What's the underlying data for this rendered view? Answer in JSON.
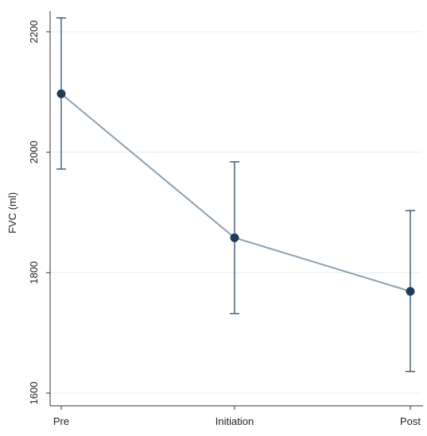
{
  "chart_data": {
    "type": "line",
    "categories": [
      "Pre",
      "Initiation",
      "Post"
    ],
    "series": [
      {
        "values": [
          2097,
          1858,
          1769
        ],
        "ci_lower": [
          1972,
          1732,
          1636
        ],
        "ci_upper": [
          2223,
          1984,
          1903
        ]
      }
    ],
    "xlabel": "",
    "ylabel": "FVC (ml)",
    "yticks": [
      1600,
      1800,
      2000,
      2200
    ],
    "ylim": [
      1600,
      2230
    ],
    "grid": true,
    "colors": {
      "line": "#8aa0b2",
      "marker": "#1f3b5a",
      "error_bar": "#2d4a66",
      "grid": "#e6ecef",
      "axis": "#333333"
    }
  }
}
